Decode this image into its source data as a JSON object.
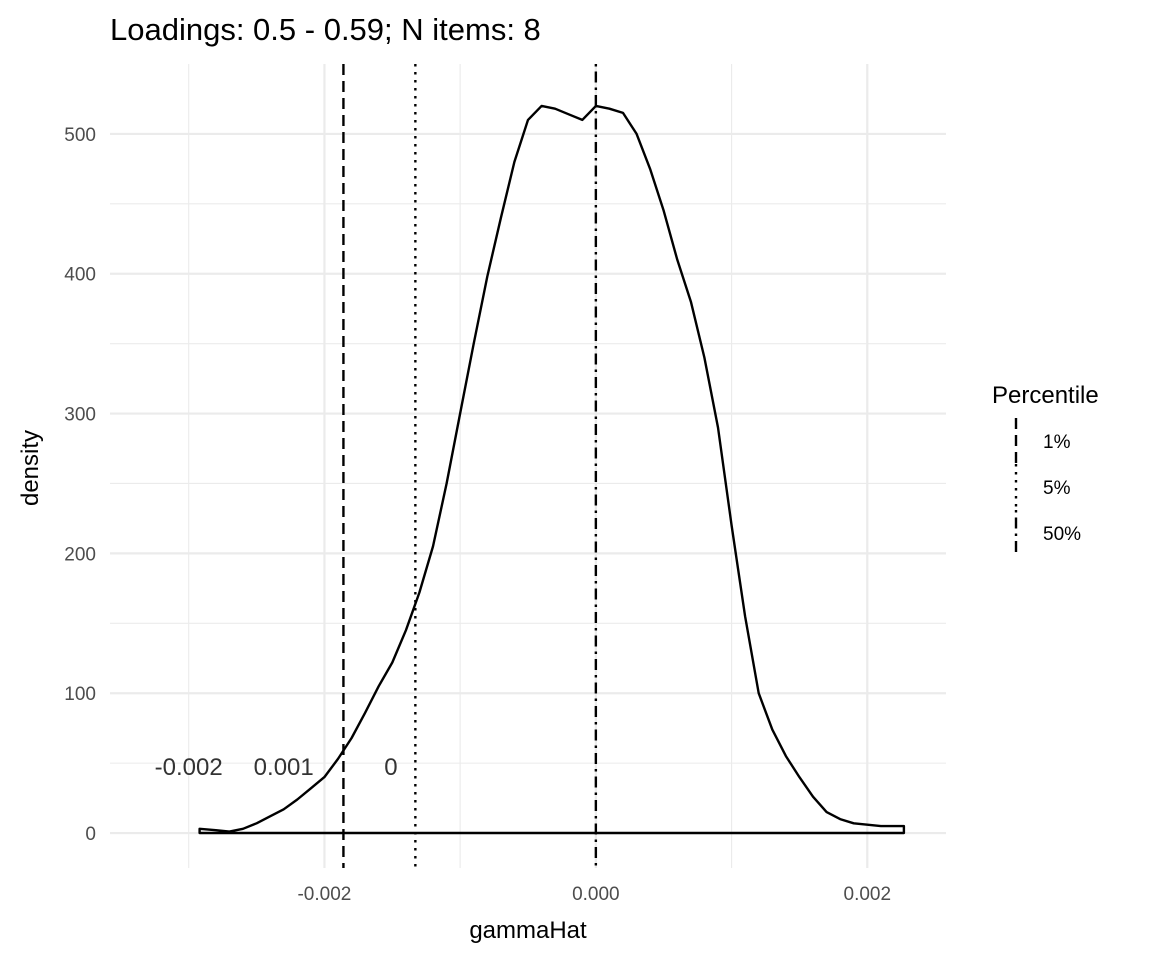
{
  "chart_data": {
    "type": "area",
    "title": "Loadings: 0.5 - 0.59; N items: 8",
    "xlabel": "gammaHat",
    "ylabel": "density",
    "xlim": [
      -0.00358,
      0.00258
    ],
    "ylim": [
      -25,
      550
    ],
    "x_ticks": [
      {
        "value": -0.002,
        "label": "-0.002"
      },
      {
        "value": 0.0,
        "label": "0.000"
      },
      {
        "value": 0.002,
        "label": "0.002"
      }
    ],
    "x_minor_ticks": [
      -0.003,
      -0.001,
      0.001
    ],
    "y_ticks": [
      {
        "value": 0,
        "label": "0"
      },
      {
        "value": 100,
        "label": "100"
      },
      {
        "value": 200,
        "label": "200"
      },
      {
        "value": 300,
        "label": "300"
      },
      {
        "value": 400,
        "label": "400"
      },
      {
        "value": 500,
        "label": "500"
      }
    ],
    "y_minor_ticks": [
      50,
      150,
      250,
      350,
      450
    ],
    "grid": true,
    "series": [
      {
        "x": [
          -0.00292,
          -0.0028,
          -0.0027,
          -0.0026,
          -0.0025,
          -0.0024,
          -0.0023,
          -0.0022,
          -0.0021,
          -0.002,
          -0.0019,
          -0.0018,
          -0.0017,
          -0.0016,
          -0.0015,
          -0.0014,
          -0.0013,
          -0.0012,
          -0.0011,
          -0.001,
          -0.0009,
          -0.0008,
          -0.0007,
          -0.0006,
          -0.0005,
          -0.0004,
          -0.0003,
          -0.0002,
          -0.0001,
          0.0,
          0.0001,
          0.0002,
          0.0003,
          0.0004,
          0.0005,
          0.0006,
          0.0007,
          0.0008,
          0.0009,
          0.001,
          0.0011,
          0.0012,
          0.0013,
          0.0014,
          0.0015,
          0.0016,
          0.0017,
          0.0018,
          0.0019,
          0.002,
          0.0021,
          0.0022,
          0.00227
        ],
        "y": [
          3,
          2,
          1,
          3,
          7,
          12,
          17,
          24,
          32,
          40,
          53,
          68,
          86,
          105,
          122,
          145,
          172,
          205,
          250,
          300,
          350,
          398,
          440,
          480,
          510,
          520,
          518,
          514,
          510,
          520,
          518,
          515,
          500,
          475,
          445,
          410,
          380,
          340,
          290,
          220,
          155,
          100,
          74,
          55,
          40,
          26,
          15,
          10,
          7,
          6,
          5,
          5,
          5
        ]
      }
    ],
    "percentile_lines": [
      {
        "label": "1%",
        "x": -0.00186,
        "style": "dashed"
      },
      {
        "label": "5%",
        "x": -0.00133,
        "style": "dotted"
      },
      {
        "label": "50%",
        "x": 0.0,
        "style": "dotdash"
      }
    ],
    "annotations": [
      {
        "text": "-0.002",
        "x": -0.003,
        "y": 48
      },
      {
        "text": "0.001",
        "x": -0.0023,
        "y": 48
      },
      {
        "text": "0",
        "x": -0.00151,
        "y": 48
      }
    ],
    "legend": {
      "title": "Percentile",
      "position": "right",
      "items": [
        "1%",
        "5%",
        "50%"
      ]
    }
  }
}
